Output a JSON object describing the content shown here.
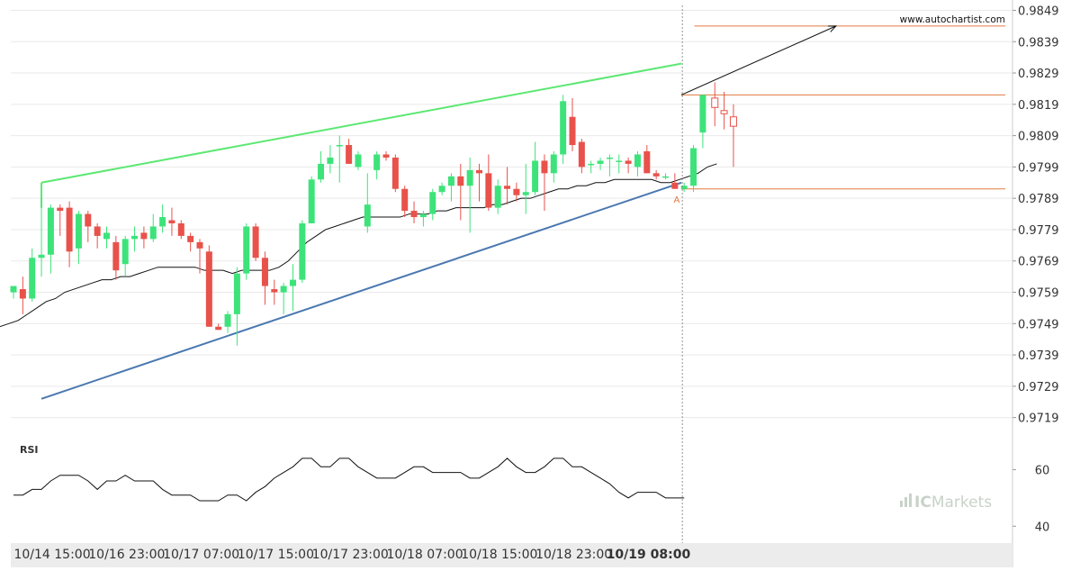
{
  "watermark": "www.autochartist.com",
  "brand": {
    "prefix": "IC",
    "name": "Markets",
    "color": "#c8d2c8"
  },
  "colors": {
    "up": "#3de37a",
    "down": "#e8524a",
    "ma": "#111111",
    "resistance": "#5ce873",
    "support": "#4a78b0",
    "level": "#e07a40",
    "projection": "#111111",
    "grid": "#e9e9e9",
    "axis_text": "#333333"
  },
  "chart_data": [
    {
      "type": "candlestick",
      "title": "",
      "y_ticks": [
        "0.9849",
        "0.9839",
        "0.9829",
        "0.9819",
        "0.9809",
        "0.9799",
        "0.9789",
        "0.9779",
        "0.9769",
        "0.9759",
        "0.9749",
        "0.9739",
        "0.9729",
        "0.9719"
      ],
      "ylim": [
        0.9712,
        0.985
      ],
      "x_ticks": [
        {
          "label": "10/14 15:00",
          "index": 3
        },
        {
          "label": "10/16 23:00",
          "index": 11
        },
        {
          "label": "10/17 07:00",
          "index": 19
        },
        {
          "label": "10/17 15:00",
          "index": 27
        },
        {
          "label": "10/17 23:00",
          "index": 35
        },
        {
          "label": "10/18 07:00",
          "index": 43
        },
        {
          "label": "10/18 15:00",
          "index": 51
        },
        {
          "label": "10/18 23:00",
          "index": 59
        },
        {
          "label": "10/19 08:00",
          "index": 67,
          "bold": true
        }
      ],
      "candles": [
        [
          0.9759,
          0.9761,
          0.9757,
          0.9761
        ],
        [
          0.976,
          0.9764,
          0.9752,
          0.9757
        ],
        [
          0.9757,
          0.9773,
          0.9756,
          0.977
        ],
        [
          0.977,
          0.9789,
          0.9764,
          0.9771
        ],
        [
          0.9771,
          0.9787,
          0.9765,
          0.9786
        ],
        [
          0.9786,
          0.9787,
          0.9777,
          0.9785
        ],
        [
          0.9786,
          0.9788,
          0.9767,
          0.9772
        ],
        [
          0.9773,
          0.9785,
          0.9768,
          0.9784
        ],
        [
          0.9784,
          0.9785,
          0.9775,
          0.978
        ],
        [
          0.978,
          0.9781,
          0.9773,
          0.9777
        ],
        [
          0.9776,
          0.978,
          0.9773,
          0.9778
        ],
        [
          0.9775,
          0.9777,
          0.9763,
          0.9766
        ],
        [
          0.9768,
          0.9777,
          0.9764,
          0.9776
        ],
        [
          0.9776,
          0.978,
          0.9772,
          0.9777
        ],
        [
          0.9778,
          0.978,
          0.9773,
          0.9776
        ],
        [
          0.9776,
          0.9784,
          0.9775,
          0.978
        ],
        [
          0.978,
          0.9787,
          0.9778,
          0.9783
        ],
        [
          0.9782,
          0.9786,
          0.9777,
          0.9781
        ],
        [
          0.9781,
          0.9782,
          0.9776,
          0.9777
        ],
        [
          0.9777,
          0.9778,
          0.9772,
          0.9775
        ],
        [
          0.9775,
          0.9776,
          0.9765,
          0.9773
        ],
        [
          0.9772,
          0.9774,
          0.9748,
          0.9748
        ],
        [
          0.9748,
          0.9749,
          0.9747,
          0.9747
        ],
        [
          0.9748,
          0.9753,
          0.9746,
          0.9752
        ],
        [
          0.9752,
          0.9767,
          0.9742,
          0.9765
        ],
        [
          0.9765,
          0.9781,
          0.9763,
          0.978
        ],
        [
          0.978,
          0.9781,
          0.9769,
          0.977
        ],
        [
          0.977,
          0.9772,
          0.9755,
          0.9761
        ],
        [
          0.976,
          0.9763,
          0.9755,
          0.9759
        ],
        [
          0.9759,
          0.9762,
          0.9752,
          0.9761
        ],
        [
          0.9761,
          0.9768,
          0.9753,
          0.9763
        ],
        [
          0.9763,
          0.9782,
          0.9762,
          0.9781
        ],
        [
          0.9781,
          0.9796,
          0.9781,
          0.9795
        ],
        [
          0.9795,
          0.9804,
          0.9794,
          0.98
        ],
        [
          0.98,
          0.9806,
          0.9797,
          0.9802
        ],
        [
          0.9806,
          0.9809,
          0.9794,
          0.9806
        ],
        [
          0.9806,
          0.9808,
          0.98,
          0.98
        ],
        [
          0.9799,
          0.9804,
          0.9798,
          0.9803
        ],
        [
          0.978,
          0.9797,
          0.9778,
          0.9787
        ],
        [
          0.9798,
          0.9804,
          0.9795,
          0.9803
        ],
        [
          0.9803,
          0.9804,
          0.9801,
          0.9802
        ],
        [
          0.9802,
          0.9803,
          0.9791,
          0.9792
        ],
        [
          0.9792,
          0.9793,
          0.9783,
          0.9785
        ],
        [
          0.9785,
          0.9788,
          0.9781,
          0.9783
        ],
        [
          0.9783,
          0.9785,
          0.978,
          0.9784
        ],
        [
          0.9784,
          0.9792,
          0.9782,
          0.9791
        ],
        [
          0.9791,
          0.9794,
          0.979,
          0.9793
        ],
        [
          0.9793,
          0.9797,
          0.9788,
          0.9796
        ],
        [
          0.9796,
          0.98,
          0.9782,
          0.9793
        ],
        [
          0.9793,
          0.9802,
          0.9778,
          0.9798
        ],
        [
          0.9798,
          0.98,
          0.9788,
          0.9797
        ],
        [
          0.9797,
          0.9803,
          0.9785,
          0.9786
        ],
        [
          0.9786,
          0.9795,
          0.9784,
          0.9793
        ],
        [
          0.9793,
          0.9799,
          0.9787,
          0.9792
        ],
        [
          0.9792,
          0.9794,
          0.9788,
          0.979
        ],
        [
          0.979,
          0.98,
          0.9784,
          0.9791
        ],
        [
          0.9791,
          0.9807,
          0.979,
          0.9801
        ],
        [
          0.9801,
          0.9803,
          0.9785,
          0.9797
        ],
        [
          0.9797,
          0.9804,
          0.9794,
          0.9803
        ],
        [
          0.9803,
          0.9822,
          0.98,
          0.982
        ],
        [
          0.9815,
          0.9821,
          0.9804,
          0.9806
        ],
        [
          0.9807,
          0.9808,
          0.9797,
          0.9799
        ],
        [
          0.98,
          0.9801,
          0.9797,
          0.98
        ],
        [
          0.98,
          0.9802,
          0.9798,
          0.9801
        ],
        [
          0.9802,
          0.9803,
          0.9796,
          0.9802
        ],
        [
          0.9801,
          0.9803,
          0.9797,
          0.9801
        ],
        [
          0.9801,
          0.9802,
          0.9797,
          0.98
        ],
        [
          0.9799,
          0.9804,
          0.9796,
          0.9803
        ],
        [
          0.9804,
          0.9806,
          0.9797,
          0.9797
        ],
        [
          0.9797,
          0.9798,
          0.9795,
          0.9796
        ],
        [
          0.9796,
          0.9797,
          0.9795,
          0.9796
        ],
        [
          0.9794,
          0.9797,
          0.9792,
          0.9792
        ],
        [
          0.9792,
          0.9794,
          0.9791,
          0.9793
        ],
        [
          0.9793,
          0.9806,
          0.9791,
          0.9805
        ],
        [
          0.981,
          0.9822,
          0.9805,
          0.9822
        ]
      ],
      "pending_candles": [
        [
          0.9821,
          0.9826,
          0.9812,
          0.9818
        ],
        [
          0.9817,
          0.9823,
          0.9811,
          0.9816
        ],
        [
          0.9815,
          0.9819,
          0.9799,
          0.9812
        ]
      ],
      "moving_average": [
        0.9748,
        0.9749,
        0.975,
        0.9752,
        0.9754,
        0.9756,
        0.9757,
        0.9759,
        0.976,
        0.9761,
        0.9762,
        0.9763,
        0.9763,
        0.9764,
        0.9764,
        0.9765,
        0.9766,
        0.9767,
        0.9767,
        0.9767,
        0.9767,
        0.9767,
        0.9766,
        0.9766,
        0.9766,
        0.9765,
        0.9766,
        0.9766,
        0.9766,
        0.9766,
        0.9767,
        0.9769,
        0.9772,
        0.9775,
        0.9777,
        0.9779,
        0.978,
        0.9781,
        0.9782,
        0.9783,
        0.9783,
        0.9783,
        0.9783,
        0.9783,
        0.9784,
        0.9784,
        0.9784,
        0.9785,
        0.9785,
        0.9786,
        0.9786,
        0.9786,
        0.9786,
        0.9787,
        0.9787,
        0.9788,
        0.9789,
        0.9789,
        0.979,
        0.9791,
        0.9792,
        0.9792,
        0.9793,
        0.9793,
        0.9794,
        0.9794,
        0.9795,
        0.9795,
        0.9795,
        0.9795,
        0.9795,
        0.9794,
        0.9794,
        0.9795,
        0.9796,
        0.9797,
        0.9799,
        0.98
      ],
      "resistance_line": {
        "start": [
          3,
          0.9794
        ],
        "end": [
          71.7,
          0.9832
        ]
      },
      "support_line": {
        "start": [
          3,
          0.9725
        ],
        "end": [
          71.7,
          0.9794
        ]
      },
      "level_lines": [
        {
          "price": 0.9844,
          "from_index": 73.1
        },
        {
          "price": 0.9822,
          "from_index": 71.7
        },
        {
          "price": 0.9792,
          "from_index": 71.7
        }
      ],
      "projection": {
        "start": [
          71.7,
          0.9822
        ],
        "end": [
          88.3,
          0.9844
        ]
      },
      "pattern_point": {
        "label": "A",
        "index": 71.2,
        "price": 0.9791
      },
      "current_time_index": 71.8
    },
    {
      "type": "line",
      "panel_label": "RSI",
      "y_ticks": [
        "60",
        "40"
      ],
      "ylim": [
        35,
        70
      ],
      "values": [
        51,
        51,
        53,
        53,
        56,
        58,
        58,
        58,
        56,
        53,
        56,
        56,
        58,
        56,
        56,
        56,
        53,
        51,
        51,
        51,
        49,
        49,
        49,
        51,
        51,
        49,
        52,
        54,
        57,
        59,
        61,
        64,
        64,
        61,
        61,
        64,
        64,
        61,
        59,
        57,
        57,
        57,
        59,
        61,
        61,
        59,
        59,
        59,
        59,
        57,
        57,
        59,
        61,
        64,
        61,
        59,
        59,
        61,
        64,
        64,
        61,
        61,
        59,
        57,
        55,
        52,
        50,
        52,
        52,
        52,
        50,
        50,
        50
      ],
      "rsi_start_index": 0
    }
  ]
}
